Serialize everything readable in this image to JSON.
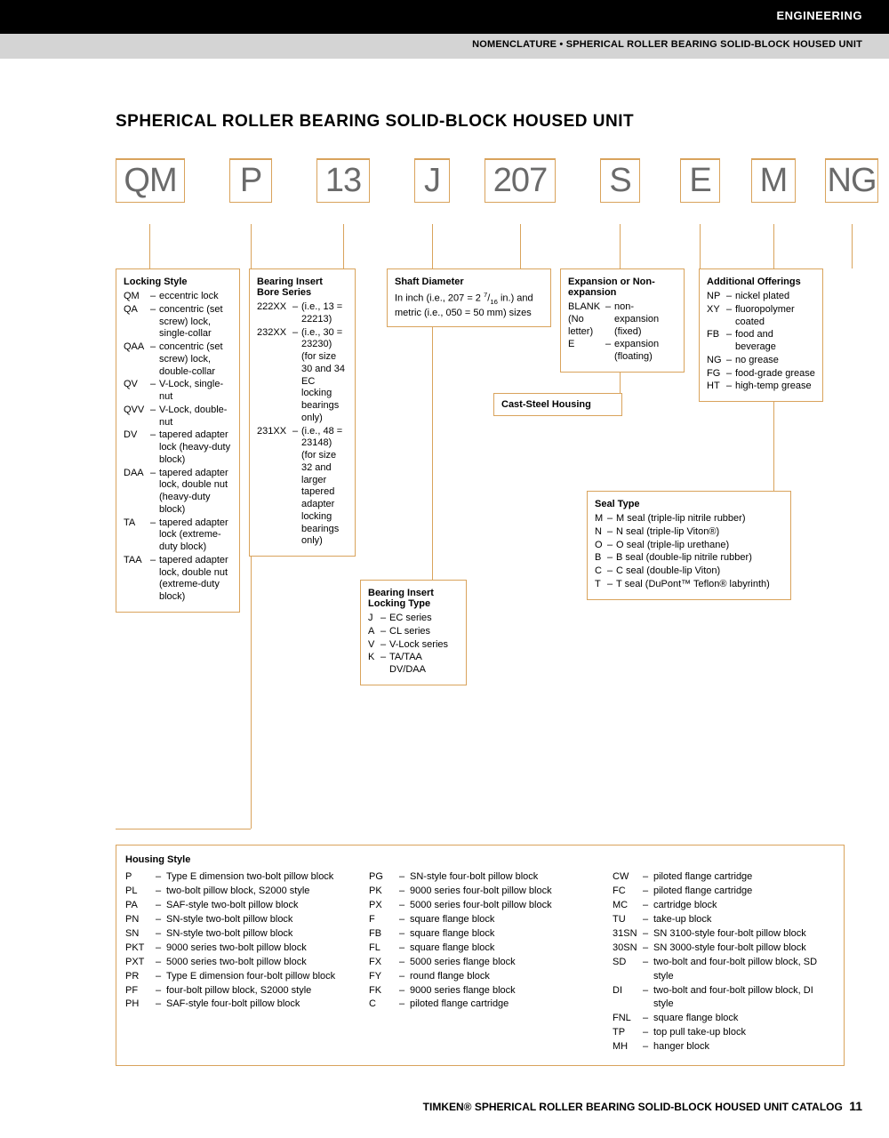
{
  "header": {
    "category": "ENGINEERING",
    "subtitle": "NOMENCLATURE • SPHERICAL ROLLER BEARING SOLID-BLOCK HOUSED UNIT"
  },
  "title": "SPHERICAL ROLLER BEARING SOLID-BLOCK HOUSED UNIT",
  "code": {
    "c0": "QM",
    "c1": "P",
    "c2": "13",
    "c3": "J",
    "c4": "207",
    "c5": "S",
    "c6": "E",
    "c7": "M",
    "c8": "NG"
  },
  "locking_style": {
    "title": "Locking Style",
    "items": [
      {
        "c": "QM",
        "d": "eccentric lock"
      },
      {
        "c": "QA",
        "d": "concentric (set screw) lock, single-collar"
      },
      {
        "c": "QAA",
        "d": "concentric (set screw) lock, double-collar"
      },
      {
        "c": "QV",
        "d": "V-Lock, single-nut"
      },
      {
        "c": "QVV",
        "d": "V-Lock, double-nut"
      },
      {
        "c": "DV",
        "d": "tapered adapter lock (heavy-duty block)"
      },
      {
        "c": "DAA",
        "d": "tapered adapter lock, double nut (heavy-duty block)"
      },
      {
        "c": "TA",
        "d": "tapered adapter lock (extreme-duty block)"
      },
      {
        "c": "TAA",
        "d": "tapered adapter lock, double nut (extreme-duty block)"
      }
    ]
  },
  "bore_series": {
    "title": "Bearing Insert Bore Series",
    "items": [
      {
        "c": "222XX",
        "d": "(i.e., 13 = 22213)"
      },
      {
        "c": "232XX",
        "d": "(i.e., 30 = 23230) (for size 30 and 34 EC locking bearings only)"
      },
      {
        "c": "231XX",
        "d": "(i.e., 48 = 23148) (for size 32 and larger tapered adapter locking bearings only)"
      }
    ]
  },
  "locking_type": {
    "title": "Bearing Insert Locking Type",
    "items": [
      {
        "c": "J",
        "d": "EC series"
      },
      {
        "c": "A",
        "d": "CL series"
      },
      {
        "c": "V",
        "d": "V-Lock series"
      },
      {
        "c": "K",
        "d": "TA/TAA DV/DAA"
      }
    ]
  },
  "shaft": {
    "title": "Shaft Diameter",
    "text": "In inch (i.e., 207 = 2 7/16 in.) and metric (i.e., 050 = 50 mm) sizes"
  },
  "cast": {
    "title": "Cast-Steel Housing"
  },
  "expansion": {
    "title": "Expansion or Non-expansion",
    "items": [
      {
        "c": "BLANK (No letter)",
        "d": "non-expansion (fixed)"
      },
      {
        "c": "E",
        "d": "expansion (floating)"
      }
    ]
  },
  "seal": {
    "title": "Seal Type",
    "items": [
      {
        "c": "M",
        "d": "M seal (triple-lip nitrile rubber)"
      },
      {
        "c": "N",
        "d": "N seal (triple-lip Viton®)"
      },
      {
        "c": "O",
        "d": "O seal (triple-lip urethane)"
      },
      {
        "c": "B",
        "d": "B seal (double-lip nitrile rubber)"
      },
      {
        "c": "C",
        "d": "C seal (double-lip Viton)"
      },
      {
        "c": "T",
        "d": "T seal (DuPont™ Teflon® labyrinth)"
      }
    ]
  },
  "additional": {
    "title": "Additional Offerings",
    "items": [
      {
        "c": "NP",
        "d": "nickel plated"
      },
      {
        "c": "XY",
        "d": "fluoropolymer coated"
      },
      {
        "c": "FB",
        "d": "food and beverage"
      },
      {
        "c": "NG",
        "d": "no grease"
      },
      {
        "c": "FG",
        "d": "food-grade grease"
      },
      {
        "c": "HT",
        "d": "high-temp grease"
      }
    ]
  },
  "housing": {
    "title": "Housing Style",
    "col1": [
      {
        "c": "P",
        "d": "Type E dimension two-bolt pillow block"
      },
      {
        "c": "PL",
        "d": "two-bolt pillow block, S2000 style"
      },
      {
        "c": "PA",
        "d": "SAF-style two-bolt pillow block"
      },
      {
        "c": "PN",
        "d": "SN-style two-bolt pillow block"
      },
      {
        "c": "SN",
        "d": "SN-style two-bolt pillow block"
      },
      {
        "c": "PKT",
        "d": "9000 series two-bolt pillow block"
      },
      {
        "c": "PXT",
        "d": "5000 series two-bolt pillow block"
      },
      {
        "c": "PR",
        "d": "Type E dimension four-bolt pillow block"
      },
      {
        "c": "PF",
        "d": "four-bolt pillow block, S2000 style"
      },
      {
        "c": "PH",
        "d": "SAF-style four-bolt pillow block"
      }
    ],
    "col2": [
      {
        "c": "PG",
        "d": "SN-style four-bolt pillow block"
      },
      {
        "c": "PK",
        "d": "9000 series four-bolt pillow block"
      },
      {
        "c": "PX",
        "d": "5000 series four-bolt pillow block"
      },
      {
        "c": "F",
        "d": "square flange block"
      },
      {
        "c": "FB",
        "d": "square flange block"
      },
      {
        "c": "FL",
        "d": "square flange block"
      },
      {
        "c": "FX",
        "d": "5000 series flange block"
      },
      {
        "c": "FY",
        "d": "round flange block"
      },
      {
        "c": "FK",
        "d": "9000 series flange block"
      },
      {
        "c": "C",
        "d": "piloted flange cartridge"
      }
    ],
    "col3": [
      {
        "c": "CW",
        "d": "piloted flange cartridge"
      },
      {
        "c": "FC",
        "d": "piloted flange cartridge"
      },
      {
        "c": "MC",
        "d": "cartridge block"
      },
      {
        "c": "TU",
        "d": "take-up block"
      },
      {
        "c": "31SN",
        "d": "SN 3100-style four-bolt pillow block"
      },
      {
        "c": "30SN",
        "d": "SN 3000-style four-bolt pillow block"
      },
      {
        "c": "SD",
        "d": "two-bolt and four-bolt pillow block, SD style"
      },
      {
        "c": "DI",
        "d": "two-bolt and four-bolt pillow block, DI style"
      },
      {
        "c": "FNL",
        "d": "square flange block"
      },
      {
        "c": "TP",
        "d": "top pull take-up block"
      },
      {
        "c": "MH",
        "d": "hanger block"
      }
    ]
  },
  "footer": {
    "text": "TIMKEN® SPHERICAL ROLLER BEARING SOLID-BLOCK HOUSED UNIT CATALOG",
    "page": "11"
  },
  "colors": {
    "accent": "#d9a35c",
    "text_gray": "#6a6a6a"
  }
}
